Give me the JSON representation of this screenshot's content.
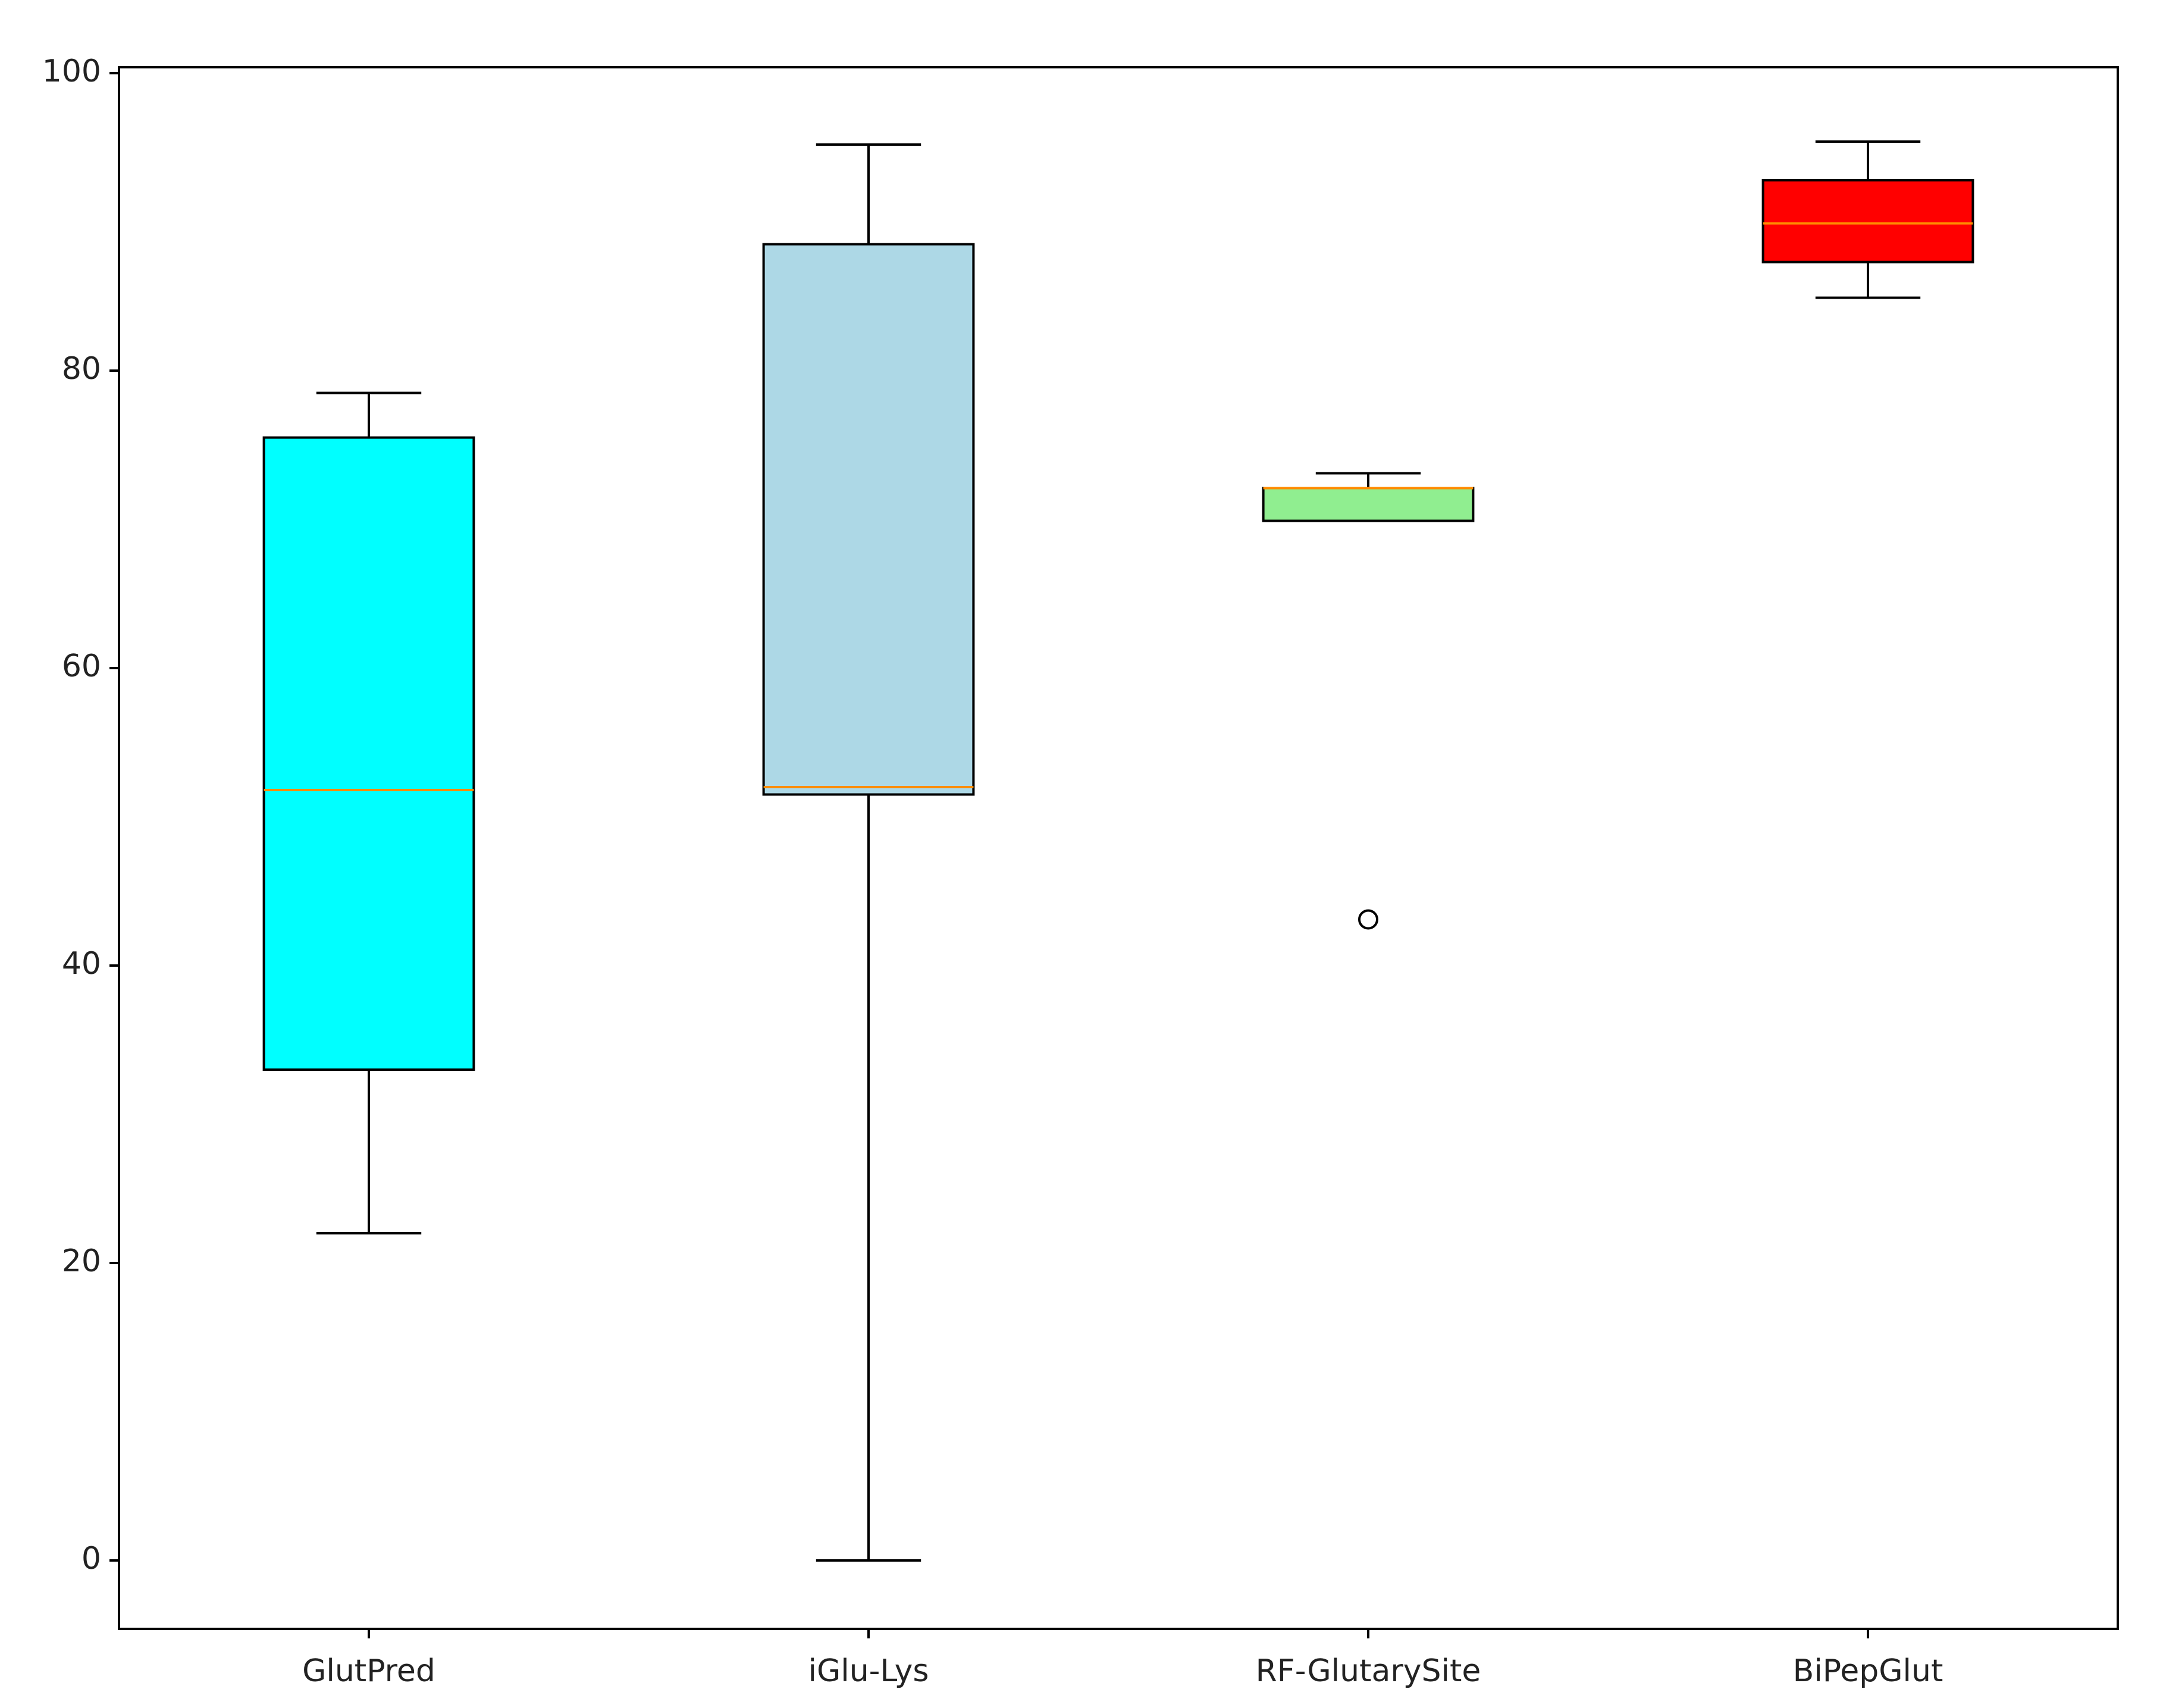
{
  "chart_data": {
    "type": "boxplot",
    "title": "",
    "xlabel": "",
    "ylabel": "",
    "ylim": [
      -4.6,
      100.4
    ],
    "yticks": [
      0,
      20,
      40,
      60,
      80,
      100
    ],
    "grid": false,
    "legend": "none",
    "categories": [
      "GlutPred",
      "iGlu-Lys",
      "RF-GlutarySite",
      "BiPepGlut"
    ],
    "boxes": [
      {
        "category": "GlutPred",
        "whisker_low": 22.0,
        "q1": 33.0,
        "median": 51.8,
        "q3": 75.5,
        "whisker_high": 78.5,
        "outliers": [],
        "color": "#00ffff"
      },
      {
        "category": "iGlu-Lys",
        "whisker_low": 0.0,
        "q1": 51.5,
        "median": 52.0,
        "q3": 88.5,
        "whisker_high": 95.2,
        "outliers": [],
        "color": "#add8e6"
      },
      {
        "category": "RF-GlutarySite",
        "whisker_low": 69.9,
        "q1": 69.9,
        "median": 72.1,
        "q3": 72.1,
        "whisker_high": 73.1,
        "outliers": [
          43.1
        ],
        "color": "#90ee90"
      },
      {
        "category": "BiPepGlut",
        "whisker_low": 84.9,
        "q1": 87.3,
        "median": 89.9,
        "q3": 92.8,
        "whisker_high": 95.4,
        "outliers": [],
        "color": "#ff0000"
      }
    ],
    "median_color": "#ff8c00",
    "line_color": "#000000"
  }
}
